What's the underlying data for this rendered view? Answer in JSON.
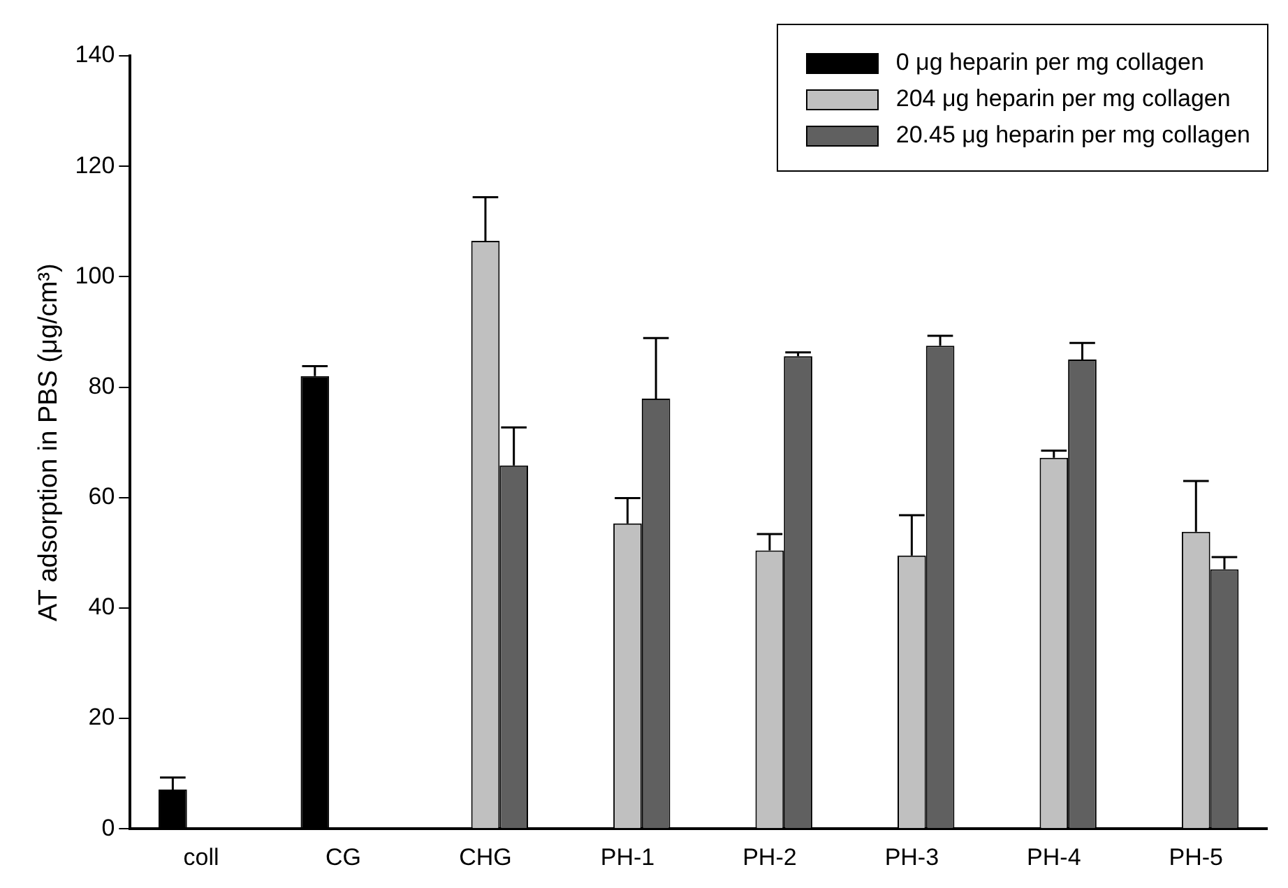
{
  "chart_data": {
    "type": "bar",
    "ylabel": "AT adsorption in PBS (μg/cm³)",
    "categories": [
      "coll",
      "CG",
      "CHG",
      "PH-1",
      "PH-2",
      "PH-3",
      "PH-4",
      "PH-5"
    ],
    "series": [
      {
        "name": "0 μg heparin per mg collagen",
        "color": "#000000",
        "values": [
          7.1,
          82,
          null,
          null,
          null,
          null,
          null,
          null
        ],
        "errors": [
          [
            7.1,
            9.3
          ],
          [
            82,
            83.8
          ],
          null,
          null,
          null,
          null,
          null,
          null
        ]
      },
      {
        "name": "204 μg heparin per mg collagen",
        "color": "#c0c0c0",
        "values": [
          null,
          null,
          106.5,
          55.3,
          50.4,
          49.5,
          67.2,
          53.8
        ],
        "errors": [
          null,
          null,
          [
            106.5,
            114.4
          ],
          [
            55.3,
            59.9
          ],
          [
            50.4,
            53.4
          ],
          [
            49.5,
            56.8
          ],
          [
            67.2,
            68.5
          ],
          [
            53.8,
            63
          ]
        ]
      },
      {
        "name": "20.45 μg heparin per mg collagen",
        "color": "#606060",
        "values": [
          null,
          null,
          65.8,
          77.9,
          85.6,
          87.5,
          85,
          47
        ],
        "errors": [
          null,
          null,
          [
            65.8,
            72.7
          ],
          [
            77.9,
            88.9
          ],
          [
            85.6,
            86.3
          ],
          [
            87.5,
            89.3
          ],
          [
            85,
            88
          ],
          [
            47,
            49.2
          ]
        ]
      }
    ],
    "ylim": [
      0,
      140
    ],
    "yticks": [
      0,
      20,
      40,
      60,
      80,
      100,
      120,
      140
    ],
    "grid": false,
    "legend": "top right"
  }
}
